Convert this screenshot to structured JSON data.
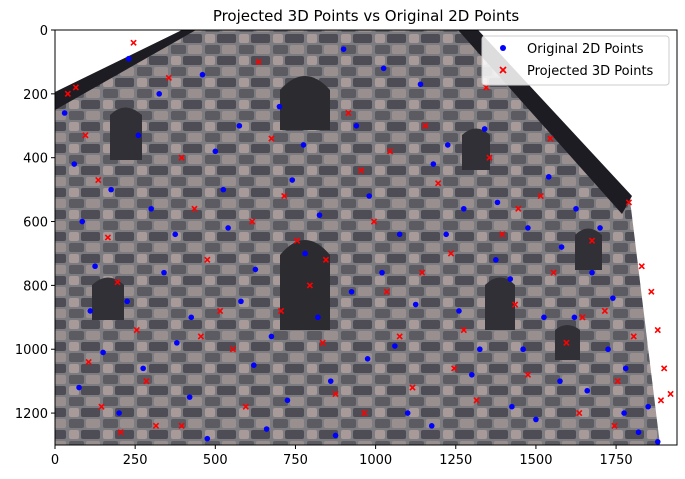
{
  "chart_data": {
    "type": "scatter",
    "title": "Projected 3D Points vs Original 2D Points",
    "xlabel": "",
    "ylabel": "",
    "xlim": [
      0,
      1940
    ],
    "ylim": [
      1300,
      0
    ],
    "y_inverted": true,
    "grid": false,
    "legend_position": "top-right",
    "background": "photograph of a stone masonry building facade with a dark sloped roof edge and arched window openings",
    "x_ticks": [
      "0",
      "250",
      "500",
      "750",
      "1000",
      "1250",
      "1500",
      "1750"
    ],
    "y_ticks": [
      "0",
      "200",
      "400",
      "600",
      "800",
      "1000",
      "1200"
    ],
    "x_tick_values": [
      0,
      250,
      500,
      750,
      1000,
      1250,
      1500,
      1750
    ],
    "y_tick_values": [
      0,
      200,
      400,
      600,
      800,
      1000,
      1200
    ],
    "series": [
      {
        "name": "Original 2D Points",
        "marker": "circle",
        "color": "#0000ff",
        "points": [
          [
            30,
            260
          ],
          [
            60,
            420
          ],
          [
            85,
            600
          ],
          [
            110,
            880
          ],
          [
            150,
            1010
          ],
          [
            200,
            1200
          ],
          [
            230,
            90
          ],
          [
            260,
            330
          ],
          [
            300,
            560
          ],
          [
            340,
            760
          ],
          [
            380,
            980
          ],
          [
            420,
            1150
          ],
          [
            460,
            140
          ],
          [
            500,
            380
          ],
          [
            540,
            620
          ],
          [
            580,
            850
          ],
          [
            620,
            1050
          ],
          [
            660,
            1250
          ],
          [
            700,
            240
          ],
          [
            740,
            470
          ],
          [
            780,
            700
          ],
          [
            820,
            900
          ],
          [
            860,
            1100
          ],
          [
            900,
            60
          ],
          [
            940,
            300
          ],
          [
            980,
            520
          ],
          [
            1020,
            760
          ],
          [
            1060,
            990
          ],
          [
            1100,
            1200
          ],
          [
            1140,
            170
          ],
          [
            1180,
            420
          ],
          [
            1220,
            640
          ],
          [
            1260,
            880
          ],
          [
            1300,
            1080
          ],
          [
            1340,
            310
          ],
          [
            1380,
            540
          ],
          [
            1420,
            780
          ],
          [
            1460,
            1000
          ],
          [
            1500,
            1220
          ],
          [
            1540,
            460
          ],
          [
            1580,
            680
          ],
          [
            1620,
            900
          ],
          [
            1660,
            1130
          ],
          [
            1700,
            620
          ],
          [
            1740,
            840
          ],
          [
            1780,
            1060
          ],
          [
            1820,
            1260
          ],
          [
            75,
            1120
          ],
          [
            125,
            740
          ],
          [
            175,
            500
          ],
          [
            225,
            850
          ],
          [
            275,
            1060
          ],
          [
            325,
            200
          ],
          [
            375,
            640
          ],
          [
            425,
            900
          ],
          [
            475,
            1280
          ],
          [
            525,
            500
          ],
          [
            575,
            300
          ],
          [
            625,
            750
          ],
          [
            675,
            960
          ],
          [
            725,
            1160
          ],
          [
            775,
            360
          ],
          [
            825,
            580
          ],
          [
            875,
            1270
          ],
          [
            925,
            820
          ],
          [
            975,
            1030
          ],
          [
            1025,
            120
          ],
          [
            1075,
            640
          ],
          [
            1125,
            860
          ],
          [
            1175,
            1240
          ],
          [
            1225,
            360
          ],
          [
            1275,
            560
          ],
          [
            1325,
            1000
          ],
          [
            1375,
            720
          ],
          [
            1425,
            1180
          ],
          [
            1475,
            620
          ],
          [
            1525,
            900
          ],
          [
            1575,
            1100
          ],
          [
            1625,
            560
          ],
          [
            1675,
            760
          ],
          [
            1725,
            1000
          ],
          [
            1775,
            1200
          ],
          [
            1850,
            1180
          ],
          [
            1880,
            1290
          ]
        ]
      },
      {
        "name": "Projected 3D Points",
        "marker": "x",
        "color": "#ff0000",
        "points": [
          [
            40,
            200
          ],
          [
            95,
            330
          ],
          [
            135,
            470
          ],
          [
            165,
            650
          ],
          [
            195,
            790
          ],
          [
            255,
            940
          ],
          [
            285,
            1100
          ],
          [
            315,
            1240
          ],
          [
            355,
            150
          ],
          [
            395,
            400
          ],
          [
            435,
            560
          ],
          [
            475,
            720
          ],
          [
            515,
            880
          ],
          [
            555,
            1000
          ],
          [
            595,
            1180
          ],
          [
            635,
            100
          ],
          [
            675,
            340
          ],
          [
            715,
            520
          ],
          [
            755,
            660
          ],
          [
            795,
            800
          ],
          [
            835,
            980
          ],
          [
            875,
            1140
          ],
          [
            915,
            260
          ],
          [
            955,
            440
          ],
          [
            995,
            600
          ],
          [
            1035,
            820
          ],
          [
            1075,
            960
          ],
          [
            1115,
            1120
          ],
          [
            1155,
            300
          ],
          [
            1195,
            480
          ],
          [
            1235,
            700
          ],
          [
            1275,
            940
          ],
          [
            1315,
            1160
          ],
          [
            1355,
            400
          ],
          [
            1395,
            640
          ],
          [
            1435,
            860
          ],
          [
            1475,
            1080
          ],
          [
            1515,
            520
          ],
          [
            1555,
            760
          ],
          [
            1595,
            980
          ],
          [
            1635,
            1200
          ],
          [
            1675,
            660
          ],
          [
            1715,
            880
          ],
          [
            1755,
            1100
          ],
          [
            1790,
            540
          ],
          [
            1830,
            740
          ],
          [
            1860,
            820
          ],
          [
            1880,
            940
          ],
          [
            1900,
            1060
          ],
          [
            1920,
            1140
          ],
          [
            205,
            1260
          ],
          [
            145,
            1180
          ],
          [
            105,
            1040
          ],
          [
            65,
            180
          ],
          [
            245,
            40
          ],
          [
            395,
            1240
          ],
          [
            455,
            960
          ],
          [
            615,
            600
          ],
          [
            705,
            880
          ],
          [
            845,
            720
          ],
          [
            965,
            1200
          ],
          [
            1045,
            380
          ],
          [
            1145,
            760
          ],
          [
            1245,
            1060
          ],
          [
            1345,
            180
          ],
          [
            1445,
            560
          ],
          [
            1545,
            340
          ],
          [
            1645,
            900
          ],
          [
            1745,
            1240
          ],
          [
            1805,
            960
          ],
          [
            1890,
            1160
          ]
        ]
      }
    ]
  }
}
